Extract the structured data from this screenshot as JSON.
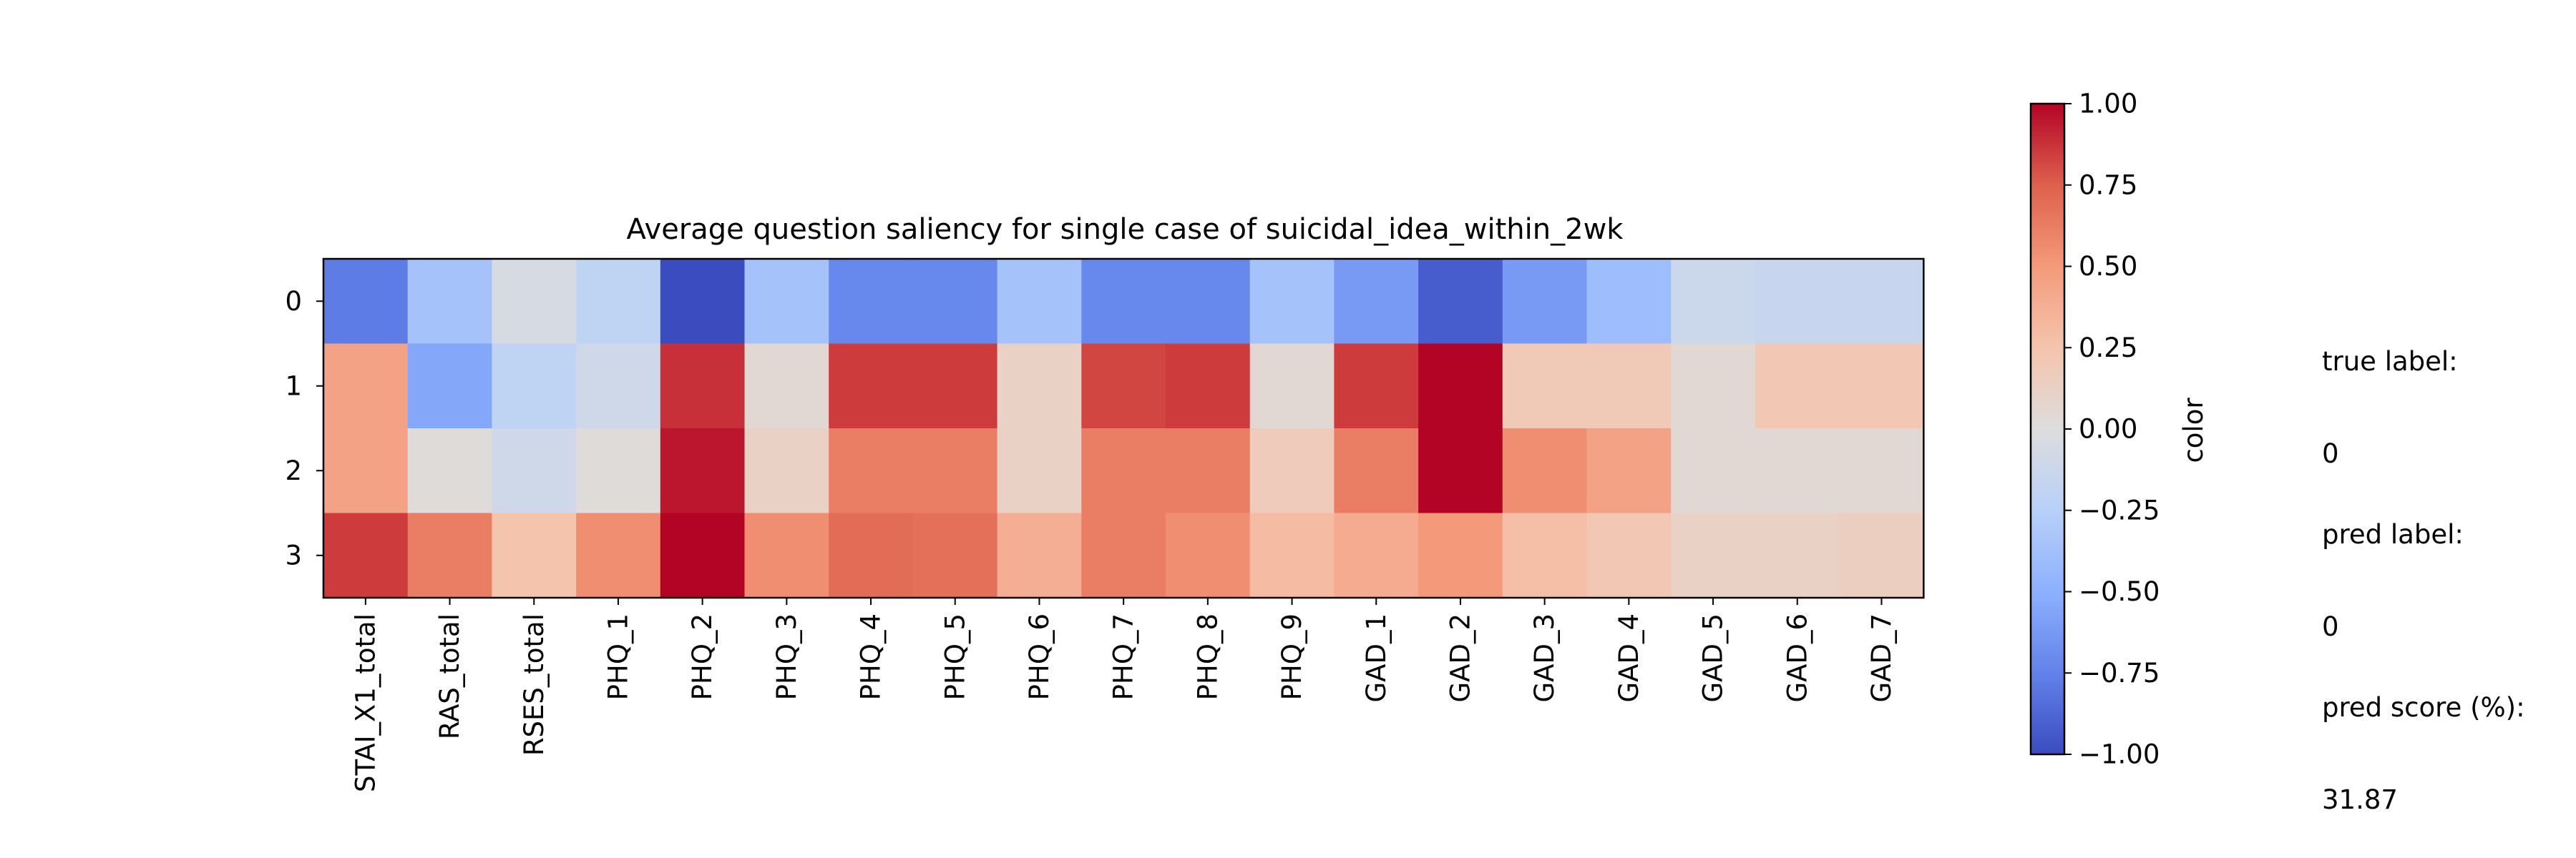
{
  "chart_data": {
    "type": "heatmap",
    "title": "Average question saliency for single case of suicidal_idea_within_2wk",
    "x_tick_labels": [
      "STAI_X1_total",
      "RAS_total",
      "RSES_total",
      "PHQ_1",
      "PHQ_2",
      "PHQ_3",
      "PHQ_4",
      "PHQ_5",
      "PHQ_6",
      "PHQ_7",
      "PHQ_8",
      "PHQ_9",
      "GAD_1",
      "GAD_2",
      "GAD_3",
      "GAD_4",
      "GAD_5",
      "GAD_6",
      "GAD_7"
    ],
    "y_tick_labels": [
      "0",
      "1",
      "2",
      "3"
    ],
    "values": [
      [
        -0.78,
        -0.36,
        -0.05,
        -0.2,
        -1.0,
        -0.36,
        -0.72,
        -0.72,
        -0.36,
        -0.72,
        -0.72,
        -0.36,
        -0.62,
        -0.92,
        -0.62,
        -0.4,
        -0.12,
        -0.15,
        -0.15
      ],
      [
        0.45,
        -0.55,
        -0.2,
        -0.1,
        0.88,
        0.05,
        0.85,
        0.85,
        0.12,
        0.82,
        0.85,
        0.05,
        0.85,
        1.0,
        0.2,
        0.2,
        0.05,
        0.22,
        0.22
      ],
      [
        0.45,
        0.02,
        -0.1,
        0.02,
        0.95,
        0.12,
        0.62,
        0.62,
        0.12,
        0.62,
        0.62,
        0.18,
        0.62,
        1.0,
        0.55,
        0.45,
        0.05,
        0.05,
        0.05
      ],
      [
        0.85,
        0.62,
        0.25,
        0.55,
        1.0,
        0.55,
        0.7,
        0.68,
        0.38,
        0.62,
        0.55,
        0.3,
        0.4,
        0.5,
        0.28,
        0.22,
        0.12,
        0.12,
        0.15
      ]
    ],
    "colormap": "coolwarm",
    "vmin": -1.0,
    "vmax": 1.0,
    "colorbar": {
      "label": "color",
      "ticks": [
        1.0,
        0.75,
        0.5,
        0.25,
        0.0,
        -0.25,
        -0.5,
        -0.75,
        -1.0
      ],
      "tick_labels": [
        "1.00",
        "0.75",
        "0.50",
        "0.25",
        "0.00",
        "−0.25",
        "−0.50",
        "−0.75",
        "−1.00"
      ]
    }
  },
  "info": {
    "true_label_title": "true label:",
    "true_label_value": "0",
    "pred_label_title": "pred label:",
    "pred_label_value": "0",
    "pred_score_title": "pred score (%):",
    "pred_score_value": "31.87"
  }
}
